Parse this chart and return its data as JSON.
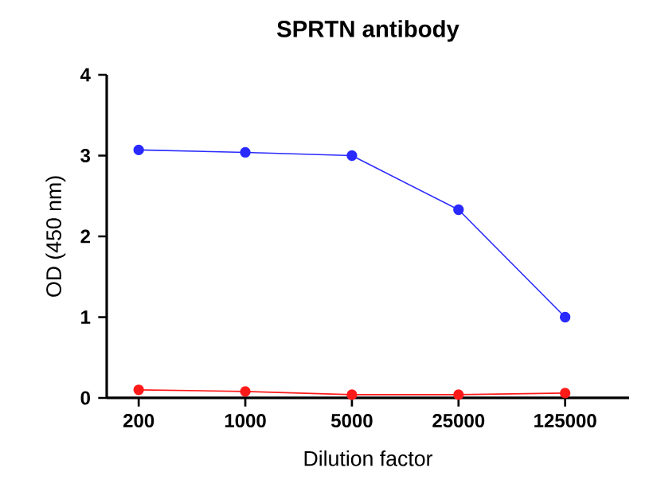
{
  "chart_data": {
    "type": "line",
    "title": "SPRTN antibody",
    "xlabel": "Dilution factor",
    "ylabel": "OD (450 nm)",
    "categories": [
      "200",
      "1000",
      "5000",
      "25000",
      "125000"
    ],
    "series": [
      {
        "color": "#2a2aff",
        "values": [
          3.07,
          3.04,
          3.0,
          2.33,
          1.0
        ]
      },
      {
        "color": "#ff1a1a",
        "values": [
          0.1,
          0.08,
          0.04,
          0.04,
          0.06
        ]
      }
    ],
    "ylim": [
      0,
      4
    ],
    "yticks": [
      0,
      1,
      2,
      3,
      4
    ],
    "grid": false,
    "marker": "circle",
    "line_style": "solid"
  }
}
